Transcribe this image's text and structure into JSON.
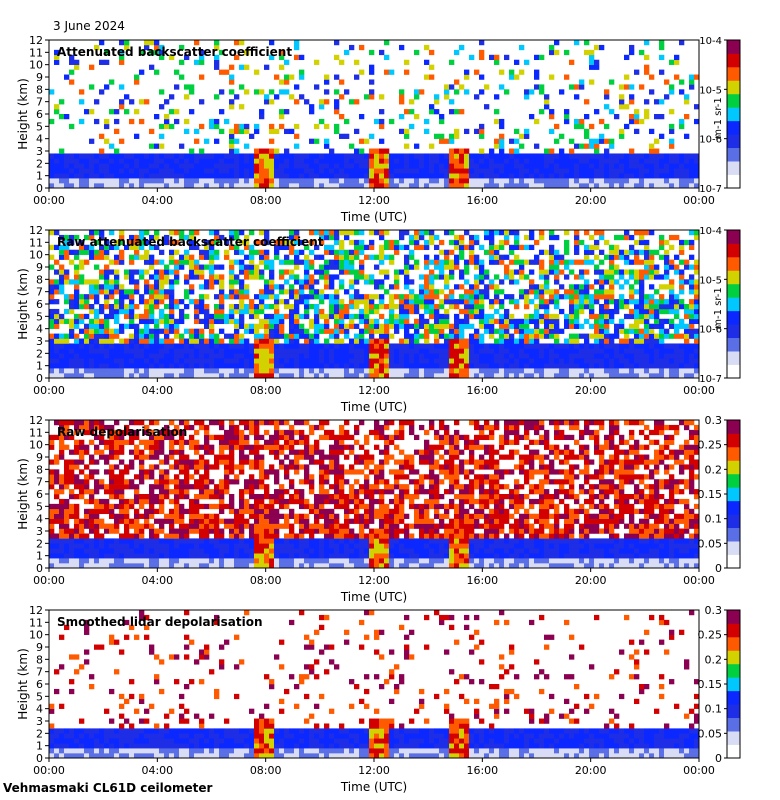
{
  "date": "3 June 2024",
  "footer": "Vehmasmaki CL61D ceilometer",
  "colors": {
    "scale": [
      "#ffffff",
      "#d8dcf5",
      "#5a6ee6",
      "#1e2de6",
      "#0a28ff",
      "#00c8ff",
      "#00d040",
      "#d2d200",
      "#ff5a00",
      "#d20000",
      "#8b0050"
    ],
    "frame": "#000000"
  },
  "chart_data": [
    {
      "type": "heatmap",
      "title": "Attenuated backscatter coefficient",
      "xlabel": "Time (UTC)",
      "ylabel": "Height (km)",
      "x_ticks": [
        "00:00",
        "04:00",
        "08:00",
        "12:00",
        "16:00",
        "20:00",
        "00:00"
      ],
      "y_ticks": [
        "0",
        "1",
        "2",
        "3",
        "4",
        "5",
        "6",
        "7",
        "8",
        "9",
        "10",
        "11",
        "12"
      ],
      "ylim": [
        0,
        12
      ],
      "xlim_hours": [
        0,
        24
      ],
      "colorbar": {
        "ticks": [
          "10-7",
          "10-6",
          "10-5",
          "10-4"
        ],
        "unit": "m-1 sr-1",
        "log": true
      },
      "features": {
        "boundary_layer_km": 2.8,
        "noise": 0.25,
        "storm_cells_hour": [
          8.0,
          12.2,
          15.2
        ]
      }
    },
    {
      "type": "heatmap",
      "title": "Raw attenuated backscatter coefficient",
      "xlabel": "Time (UTC)",
      "ylabel": "Height (km)",
      "x_ticks": [
        "00:00",
        "04:00",
        "08:00",
        "12:00",
        "16:00",
        "20:00",
        "00:00"
      ],
      "y_ticks": [
        "0",
        "1",
        "2",
        "3",
        "4",
        "5",
        "6",
        "7",
        "8",
        "9",
        "10",
        "11",
        "12"
      ],
      "ylim": [
        0,
        12
      ],
      "xlim_hours": [
        0,
        24
      ],
      "colorbar": {
        "ticks": [
          "10-7",
          "10-6",
          "10-5",
          "10-4"
        ],
        "unit": "m-1 sr-1",
        "log": true
      },
      "features": {
        "boundary_layer_km": 2.8,
        "noise": 0.85,
        "storm_cells_hour": [
          8.0,
          12.2,
          15.2
        ]
      }
    },
    {
      "type": "heatmap",
      "title": "Raw depolarisation",
      "xlabel": "Time (UTC)",
      "ylabel": "Height (km)",
      "x_ticks": [
        "00:00",
        "04:00",
        "08:00",
        "12:00",
        "16:00",
        "20:00",
        "00:00"
      ],
      "y_ticks": [
        "0",
        "1",
        "2",
        "3",
        "4",
        "5",
        "6",
        "7",
        "8",
        "9",
        "10",
        "11",
        "12"
      ],
      "ylim": [
        0,
        12
      ],
      "xlim_hours": [
        0,
        24
      ],
      "colorbar": {
        "ticks": [
          "0",
          "0.05",
          "0.1",
          "0.15",
          "0.2",
          "0.25",
          "0.3"
        ],
        "range": [
          0,
          0.3
        ],
        "log": false
      },
      "features": {
        "boundary_layer_km": 2.5,
        "noise": 0.9,
        "storm_cells_hour": [
          8.0,
          12.2,
          15.2
        ]
      }
    },
    {
      "type": "heatmap",
      "title": "Smoothed lidar depolarisation",
      "xlabel": "Time (UTC)",
      "ylabel": "Height (km)",
      "x_ticks": [
        "00:00",
        "04:00",
        "08:00",
        "12:00",
        "16:00",
        "20:00",
        "00:00"
      ],
      "y_ticks": [
        "0",
        "1",
        "2",
        "3",
        "4",
        "5",
        "6",
        "7",
        "8",
        "9",
        "10",
        "11",
        "12"
      ],
      "ylim": [
        0,
        12
      ],
      "xlim_hours": [
        0,
        24
      ],
      "colorbar": {
        "ticks": [
          "0",
          "0.05",
          "0.1",
          "0.15",
          "0.2",
          "0.25",
          "0.3"
        ],
        "range": [
          0,
          0.3
        ],
        "log": false
      },
      "features": {
        "boundary_layer_km": 2.6,
        "noise": 0.15,
        "storm_cells_hour": [
          8.0,
          12.2,
          15.2
        ]
      }
    }
  ]
}
